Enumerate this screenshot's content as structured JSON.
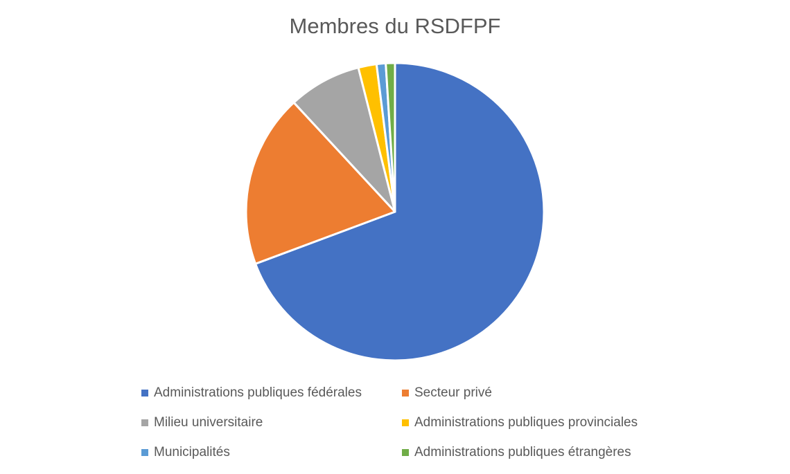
{
  "chart_data": {
    "type": "pie",
    "title": "Membres du RSDFPF",
    "categories": [
      "Administrations publiques fédérales",
      "Secteur privé",
      "Milieu universitaire",
      "Administrations publiques provinciales",
      "Municipalités",
      "Administrations publiques étrangères"
    ],
    "values": [
      70,
      19,
      8,
      2,
      1,
      1
    ],
    "colors": [
      "#4472C4",
      "#ED7D31",
      "#A5A5A5",
      "#FFC000",
      "#5B9BD5",
      "#70AD47"
    ],
    "legend_position": "bottom",
    "start_angle": "top, clockwise"
  }
}
